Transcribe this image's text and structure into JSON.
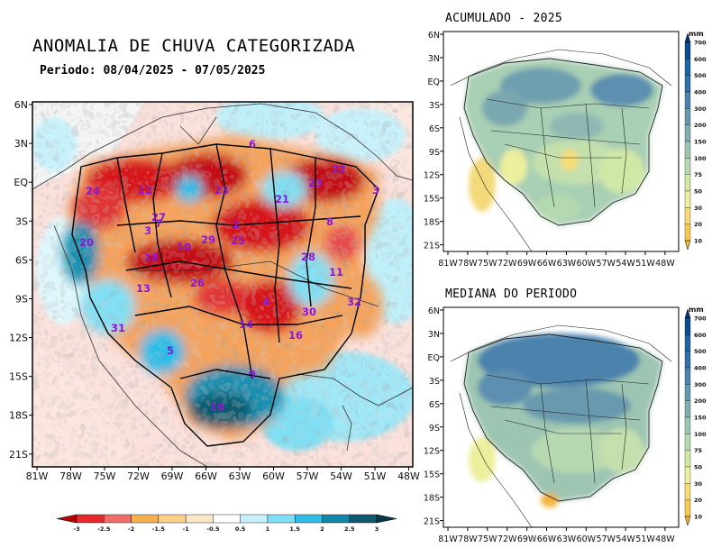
{
  "main_map": {
    "title": "ANOMALIA DE CHUVA CATEGORIZADA",
    "period": "Periodo: 08/04/2025 - 07/05/2025",
    "lat_labels": [
      "6N",
      "3N",
      "EQ",
      "3S",
      "6S",
      "9S",
      "12S",
      "15S",
      "18S",
      "21S"
    ],
    "lon_labels": [
      "81W",
      "78W",
      "75W",
      "72W",
      "69W",
      "66W",
      "63W",
      "60W",
      "57W",
      "54W",
      "51W",
      "48W"
    ],
    "basin_labels": [
      {
        "id": "6"
      },
      {
        "id": "24"
      },
      {
        "id": "12"
      },
      {
        "id": "23"
      },
      {
        "id": "21"
      },
      {
        "id": "22"
      },
      {
        "id": "23"
      },
      {
        "id": "3"
      },
      {
        "id": "20"
      },
      {
        "id": "27"
      },
      {
        "id": "3"
      },
      {
        "id": "7"
      },
      {
        "id": "29"
      },
      {
        "id": "2"
      },
      {
        "id": "25"
      },
      {
        "id": "8"
      },
      {
        "id": "18"
      },
      {
        "id": "10"
      },
      {
        "id": "28"
      },
      {
        "id": "11"
      },
      {
        "id": "13"
      },
      {
        "id": "26"
      },
      {
        "id": "4"
      },
      {
        "id": "32"
      },
      {
        "id": "30"
      },
      {
        "id": "14"
      },
      {
        "id": "31"
      },
      {
        "id": "16"
      },
      {
        "id": "5"
      },
      {
        "id": "9"
      },
      {
        "id": "19"
      }
    ],
    "colorbar": {
      "ticks": [
        "-3",
        "-2.5",
        "-2",
        "-1.5",
        "-1",
        "-0.5",
        "0.5",
        "1",
        "1.5",
        "2",
        "2.5",
        "3"
      ],
      "colors": [
        "#b40000",
        "#e8262d",
        "#f26b6b",
        "#f6b04c",
        "#fcd288",
        "#fbe8c8",
        "#ffffff",
        "#c8f2fb",
        "#7fe0f5",
        "#2bbde8",
        "#1287a8",
        "#0d5a6f",
        "#083845"
      ]
    }
  },
  "acumulado": {
    "title": "ACUMULADO - 2025",
    "unit": "mm"
  },
  "mediana": {
    "title": "MEDIANA DO PERIODO",
    "unit": "mm"
  },
  "small_maps": {
    "lat_labels": [
      "6N",
      "3N",
      "EQ",
      "3S",
      "6S",
      "9S",
      "12S",
      "15S",
      "18S",
      "21S"
    ],
    "lon_labels": [
      "81W",
      "78W",
      "75W",
      "72W",
      "69W",
      "66W",
      "63W",
      "60W",
      "57W",
      "54W",
      "51W",
      "48W"
    ],
    "colorbar_ticks": [
      "700",
      "600",
      "500",
      "400",
      "300",
      "200",
      "150",
      "100",
      "75",
      "50",
      "30",
      "20",
      "10"
    ],
    "colorbar_colors": [
      "#08306b",
      "#0b4a8e",
      "#1d64a5",
      "#336fa8",
      "#4b83ad",
      "#6799ae",
      "#82aeb0",
      "#9dc5b2",
      "#b7d9b1",
      "#d2e8a4",
      "#ecef9c",
      "#f6dc77",
      "#f7c852",
      "#f3b43a"
    ]
  }
}
